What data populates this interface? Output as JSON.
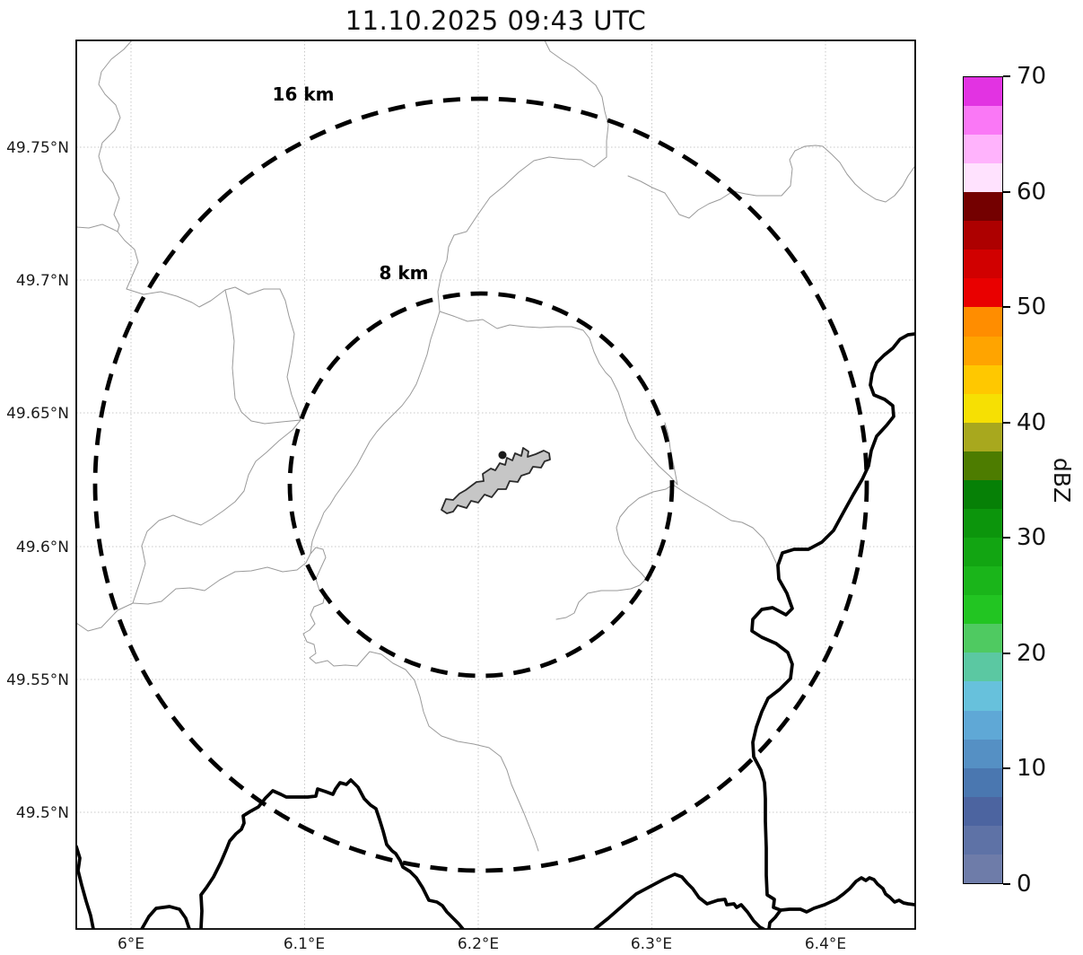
{
  "title": "11.10.2025 09:43 UTC",
  "map": {
    "x_tick_labels": [
      "6°E",
      "6.1°E",
      "6.2°E",
      "6.3°E",
      "6.4°E"
    ],
    "y_tick_labels": [
      "49.75°N",
      "49.7°N",
      "49.65°N",
      "49.6°N",
      "49.55°N",
      "49.5°N"
    ],
    "range_rings": [
      {
        "label": "16 km"
      },
      {
        "label": "8 km"
      }
    ]
  },
  "colorbar": {
    "label": "dBZ",
    "min": 0,
    "max": 70,
    "tick_values": [
      0,
      10,
      20,
      30,
      40,
      50,
      60,
      70
    ],
    "tick_labels": [
      "0",
      "10",
      "20",
      "30",
      "40",
      "50",
      "60",
      "70"
    ],
    "colors": [
      "#6e7ca9",
      "#5e72a6",
      "#4c64a0",
      "#4a77b0",
      "#5590c4",
      "#5fa8d6",
      "#67c1dc",
      "#5bc8a2",
      "#4fca61",
      "#22c522",
      "#1ab51a",
      "#12a512",
      "#0c950c",
      "#068006",
      "#4d7c00",
      "#a8a81e",
      "#f6e003",
      "#ffc800",
      "#ffa400",
      "#ff8d00",
      "#e90000",
      "#d10000",
      "#ad0000",
      "#740000",
      "#ffe2fe",
      "#ffb3fc",
      "#fa78f6",
      "#e233e2"
    ]
  },
  "colors": {
    "ring": "#000000",
    "grid": "#c8c8c8",
    "thin_boundary": "#9a9a9a",
    "border_river": "#000000",
    "city_fill": "#c6c6c6"
  }
}
